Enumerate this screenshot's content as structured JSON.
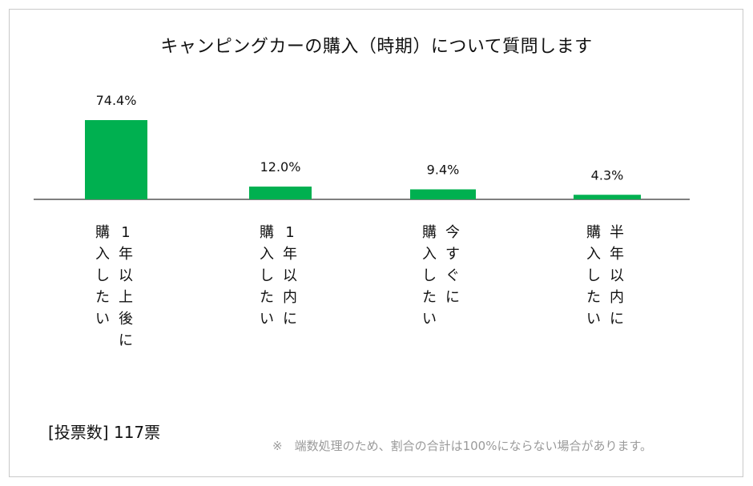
{
  "title": "キャンピングカーの購入（時期）について質問します",
  "vote_label": "[投票数]",
  "vote_count": "117票",
  "footnote": "※　端数処理のため、割合の合計は100%にならない場合があります。",
  "colors": {
    "bar": "#00b050",
    "axis": "#7f7f7f"
  },
  "chart_data": {
    "type": "bar",
    "categories": [
      "1年以上後に購入したい",
      "1年以内に購入したい",
      "今すぐに購入したい",
      "半年以内に購入したい"
    ],
    "category_columns": [
      [
        "1年以上後に",
        "購入したい"
      ],
      [
        "1年以内に",
        "購入したい"
      ],
      [
        "今すぐに",
        "購入したい"
      ],
      [
        "半年以内に",
        "購入したい"
      ]
    ],
    "values": [
      74.4,
      12.0,
      9.4,
      4.3
    ],
    "data_labels": [
      "74.4%",
      "12.0%",
      "9.4%",
      "4.3%"
    ],
    "unit": "%",
    "ylim": [
      0,
      100
    ],
    "grid": false,
    "legend": "none"
  }
}
